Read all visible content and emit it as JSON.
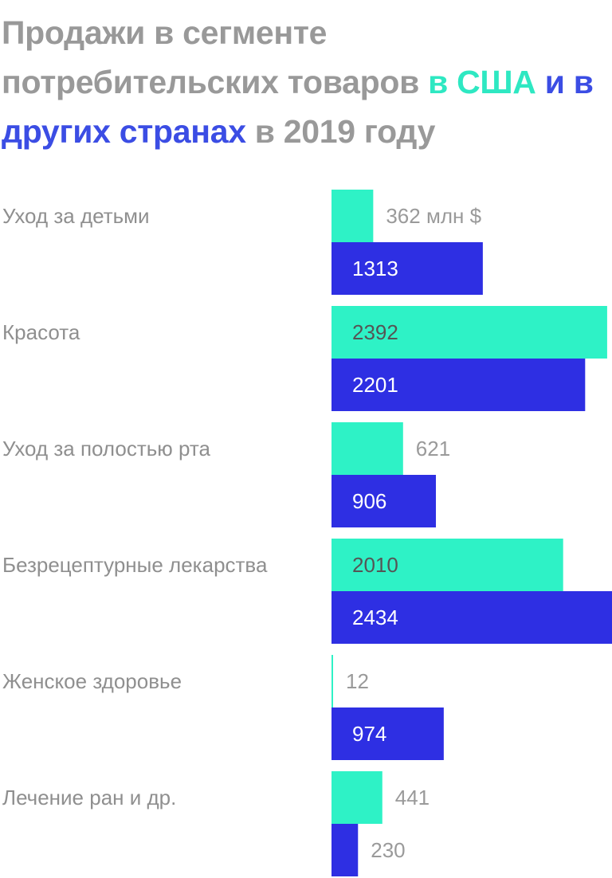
{
  "title": {
    "part1": "Продажи в сегменте потребительских товаров ",
    "part_us": "в США",
    "part2": " ",
    "part_world": "и в других странах",
    "part3": " в 2019 году"
  },
  "colors": {
    "us": "#2ef2c6",
    "world": "#2e2fe3",
    "label": "#8f8f8f",
    "value_on_us": "#555555",
    "value_on_world": "#ffffff",
    "value_outside": "#9a9a9a"
  },
  "chart_data": {
    "type": "bar",
    "orientation": "horizontal",
    "unit_label": "млн $",
    "categories": [
      "Уход за детьми",
      "Красота",
      "Уход за полостью рта",
      "Безрецептурные лекарства",
      "Женское здоровье",
      "Лечение ран и др."
    ],
    "series": [
      {
        "key": "us",
        "values": [
          362,
          2392,
          621,
          2010,
          12,
          441
        ]
      },
      {
        "key": "world",
        "values": [
          1313,
          2201,
          906,
          2434,
          974,
          230
        ]
      }
    ],
    "data_labels": [
      [
        "362 млн $",
        "2392",
        "621",
        "2010",
        "12",
        "441"
      ],
      [
        "1313",
        "2201",
        "906",
        "2434",
        "974",
        "230"
      ]
    ],
    "xlim": [
      0,
      2434
    ],
    "grid": false,
    "legend": "none"
  }
}
